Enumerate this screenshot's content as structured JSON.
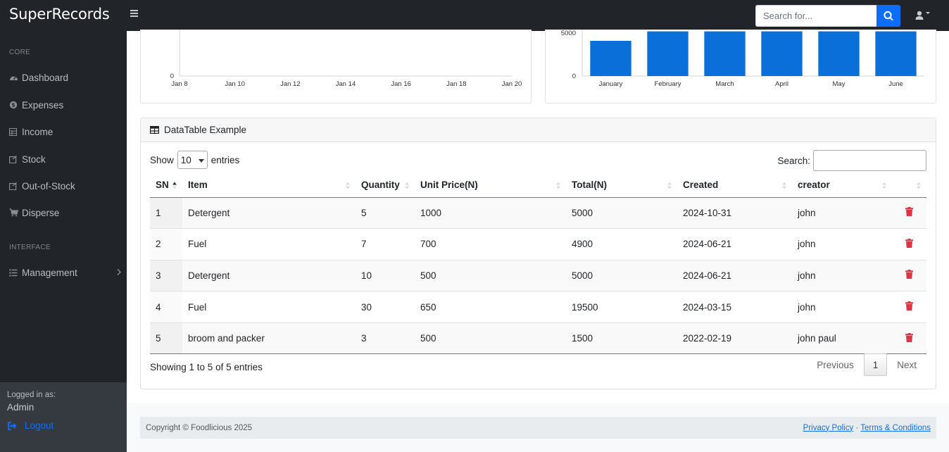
{
  "app": {
    "brand": "SuperRecords"
  },
  "topbar": {
    "search_placeholder": "Search for..."
  },
  "sidebar": {
    "sections": [
      {
        "heading": "CORE"
      },
      {
        "heading": "INTERFACE"
      }
    ],
    "items": [
      {
        "label": "Dashboard",
        "icon": "dashboard-icon"
      },
      {
        "label": "Expenses",
        "icon": "money-icon"
      },
      {
        "label": "Income",
        "icon": "table-icon"
      },
      {
        "label": "Stock",
        "icon": "box-icon"
      },
      {
        "label": "Out-of-Stock",
        "icon": "box-icon"
      },
      {
        "label": "Disperse",
        "icon": "cart-icon"
      },
      {
        "label": "Management",
        "icon": "list-icon"
      }
    ],
    "footer": {
      "logged_in_label": "Logged in as:",
      "user": "Admin",
      "logout_label": "Logout"
    }
  },
  "area_chart": {
    "y_ticks": [
      "0"
    ],
    "x_ticks": [
      "Jan 8",
      "Jan 10",
      "Jan 12",
      "Jan 14",
      "Jan 16",
      "Jan 18",
      "Jan 20"
    ]
  },
  "bar_chart_axis": {
    "y_ticks": [
      "0",
      "5000"
    ]
  },
  "chart_data": [
    {
      "type": "line",
      "x": [
        "Jan 8",
        "Jan 10",
        "Jan 12",
        "Jan 14",
        "Jan 16",
        "Jan 18",
        "Jan 20"
      ],
      "ylim": [
        0,
        null
      ],
      "series": []
    },
    {
      "type": "bar",
      "categories": [
        "January",
        "February",
        "March",
        "April",
        "May",
        "June"
      ],
      "values": [
        4100,
        5200,
        5200,
        5200,
        5200,
        5200
      ],
      "ylim": [
        0,
        5000
      ],
      "color": "#0a6fd8"
    }
  ],
  "datatable": {
    "title": "DataTable Example",
    "show_label": "Show",
    "page_length": "10",
    "entries_label": "entries",
    "search_label": "Search:",
    "columns": [
      "SN",
      "Item",
      "Quantity",
      "Unit Price(N)",
      "Total(N)",
      "Created",
      "creator",
      ""
    ],
    "rows": [
      {
        "sn": "1",
        "item": "Detergent",
        "qty": "5",
        "unit": "1000",
        "total": "5000",
        "created": "2024-10-31",
        "creator": "john"
      },
      {
        "sn": "2",
        "item": "Fuel",
        "qty": "7",
        "unit": "700",
        "total": "4900",
        "created": "2024-06-21",
        "creator": "john"
      },
      {
        "sn": "3",
        "item": "Detergent",
        "qty": "10",
        "unit": "500",
        "total": "5000",
        "created": "2024-06-21",
        "creator": "john"
      },
      {
        "sn": "4",
        "item": "Fuel",
        "qty": "30",
        "unit": "650",
        "total": "19500",
        "created": "2024-03-15",
        "creator": "john"
      },
      {
        "sn": "5",
        "item": "broom and packer",
        "qty": "3",
        "unit": "500",
        "total": "1500",
        "created": "2022-02-19",
        "creator": "john paul"
      }
    ],
    "info": "Showing 1 to 5 of 5 entries",
    "pagination": {
      "previous": "Previous",
      "current": "1",
      "next": "Next"
    }
  },
  "footer": {
    "copyright": "Copyright © Foodlicious 2025",
    "privacy": "Privacy Policy",
    "separator": "·",
    "terms": "Terms & Conditions"
  },
  "colors": {
    "accent": "#0d6efd",
    "bar": "#0a6fd8",
    "delete": "#dc3545",
    "nav_bg": "#212529"
  }
}
